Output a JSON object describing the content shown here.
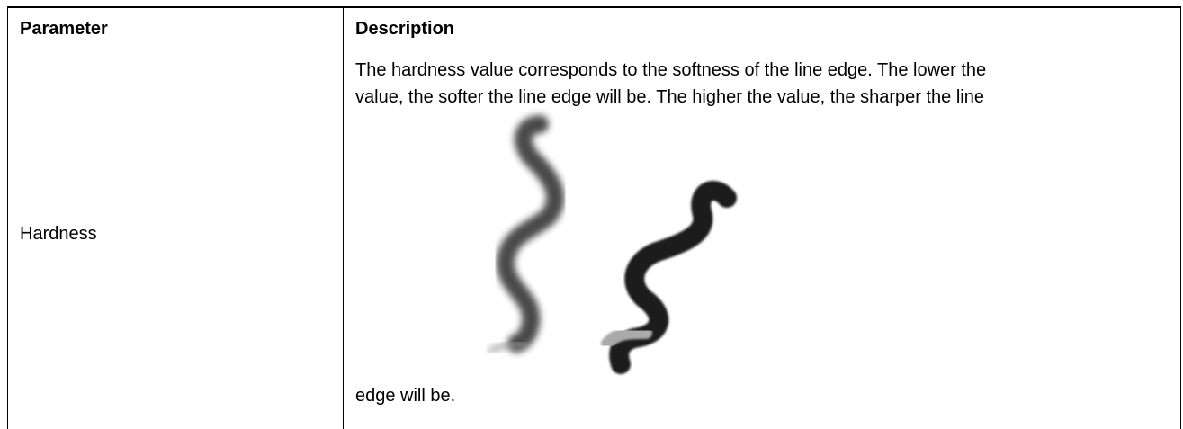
{
  "table": {
    "headers": [
      "Parameter",
      "Description"
    ],
    "rows": [
      {
        "parameter": "Hardness",
        "description": [
          "The hardness value corresponds to the softness of the line edge. The lower the",
          "value, the softer the line edge will be. The higher the value, the sharper the line",
          "edge will be."
        ]
      }
    ]
  }
}
